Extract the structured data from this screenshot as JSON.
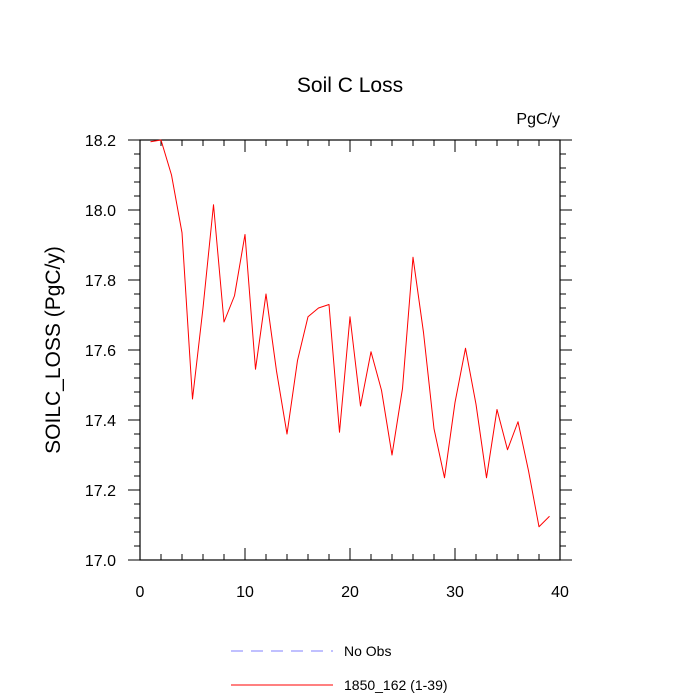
{
  "chart_data": {
    "type": "line",
    "title": "Soil C Loss",
    "units": "PgC/y",
    "xlabel": "",
    "ylabel": "SOILC_LOSS  (PgC/y)",
    "xlim": [
      0,
      40
    ],
    "ylim": [
      17.0,
      18.2
    ],
    "x_ticks": [
      0,
      10,
      20,
      30,
      40
    ],
    "y_ticks": [
      17.0,
      17.2,
      17.4,
      17.6,
      17.8,
      18.0,
      18.2
    ],
    "x_tick_labels": [
      "0",
      "10",
      "20",
      "30",
      "40"
    ],
    "y_tick_labels": [
      "17.0",
      "17.2",
      "17.4",
      "17.6",
      "17.8",
      "18.0",
      "18.2"
    ],
    "grid": false,
    "series": [
      {
        "name": "1850_162 (1-39)",
        "color": "#ff0000",
        "dash": "solid",
        "x": [
          1,
          2,
          3,
          4,
          5,
          6,
          7,
          8,
          9,
          10,
          11,
          12,
          13,
          14,
          15,
          16,
          17,
          18,
          19,
          20,
          21,
          22,
          23,
          24,
          25,
          26,
          27,
          28,
          29,
          30,
          31,
          32,
          33,
          34,
          35,
          36,
          37,
          38,
          39
        ],
        "values": [
          18.195,
          18.2,
          18.1,
          17.935,
          17.46,
          17.72,
          18.015,
          17.68,
          17.755,
          17.93,
          17.545,
          17.76,
          17.54,
          17.36,
          17.57,
          17.695,
          17.72,
          17.73,
          17.365,
          17.695,
          17.44,
          17.595,
          17.485,
          17.3,
          17.49,
          17.865,
          17.65,
          17.375,
          17.235,
          17.45,
          17.605,
          17.445,
          17.235,
          17.43,
          17.315,
          17.395,
          17.255,
          17.095,
          17.125
        ]
      }
    ],
    "legend": {
      "position": "bottom-center",
      "entries": [
        {
          "label": "No Obs",
          "color": "#8080ff",
          "dash": "dashed"
        },
        {
          "label": "1850_162 (1-39)",
          "color": "#ff0000",
          "dash": "solid"
        }
      ]
    }
  }
}
